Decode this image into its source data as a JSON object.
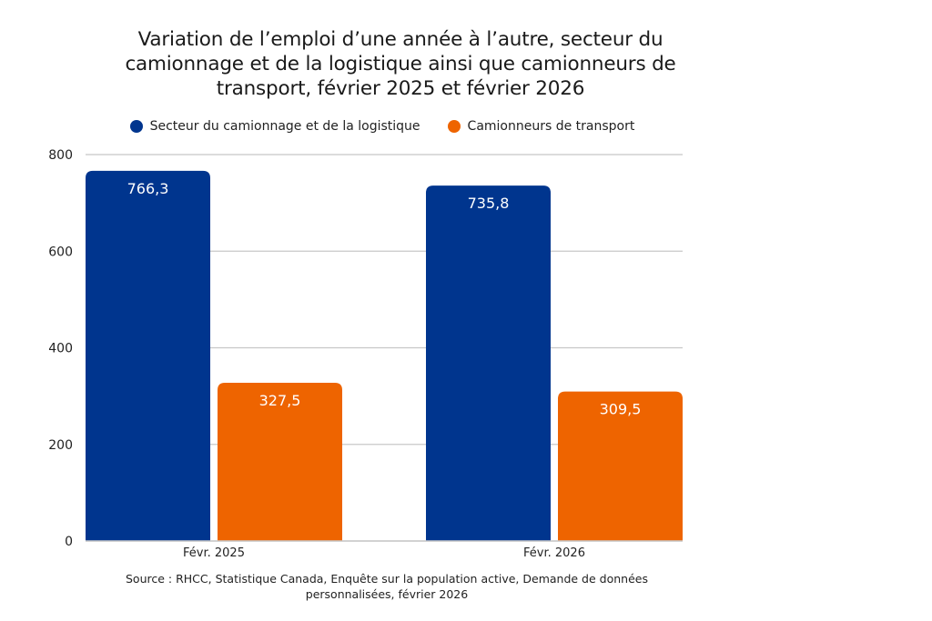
{
  "chart_data": {
    "type": "bar",
    "title": "Variation de l’emploi d’une année à l’autre, secteur du camionnage et de la logistique ainsi que camionneurs de transport, février 2025 et février 2026",
    "title_lines": [
      "Variation de l’emploi d’une année à l’autre, secteur du",
      "camionnage et de la logistique ainsi que camionneurs de",
      "transport, février 2025 et février 2026"
    ],
    "categories": [
      "Févr. 2025",
      "Févr. 2026"
    ],
    "series": [
      {
        "name": "Secteur du camionnage et de la logistique",
        "color": "#00358E",
        "values": [
          766.3,
          735.8
        ],
        "labels": [
          "766,3",
          "735,8"
        ]
      },
      {
        "name": "Camionneurs de transport",
        "color": "#EE6400",
        "values": [
          327.5,
          309.5
        ],
        "labels": [
          "327,5",
          "309,5"
        ]
      }
    ],
    "xlabel": "",
    "ylabel": "",
    "ylim": [
      0,
      800
    ],
    "yticks": [
      0,
      200,
      400,
      600,
      800
    ],
    "grid": true,
    "legend_position": "top-center",
    "source_lines": [
      "Source : RHCC, Statistique Canada, Enquête sur la population active, Demande de données",
      "personnalisées, février 2026"
    ]
  }
}
